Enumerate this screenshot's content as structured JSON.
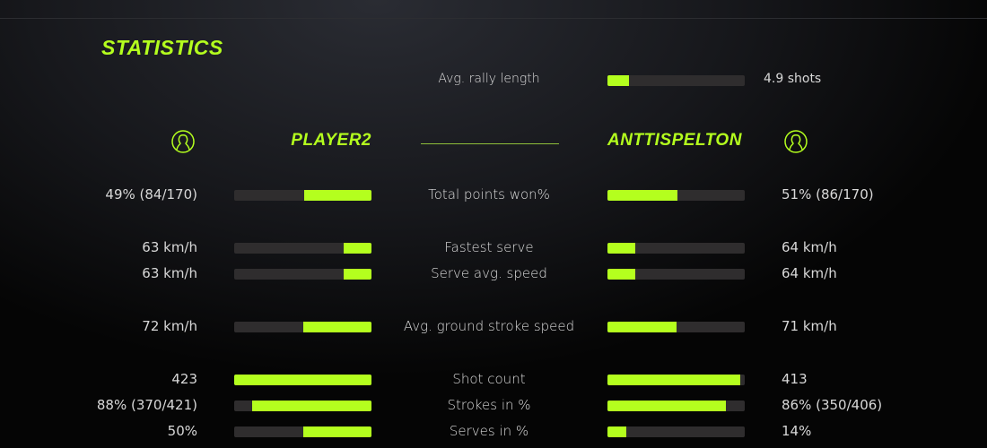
{
  "title": "STATISTICS",
  "accent": "#b4ff1e",
  "rally": {
    "label": "Avg. rally length",
    "value": "4.9 shots",
    "fill": 0.16
  },
  "players": {
    "left": {
      "name": "PLAYER2",
      "icon": "user-circle-icon"
    },
    "right": {
      "name": "ANTTISPELTON",
      "icon": "user-circle-icon"
    }
  },
  "rows": [
    {
      "label": "Total points won%",
      "left": "49% (84/170)",
      "right": "51% (86/170)",
      "left_fill": 0.49,
      "right_fill": 0.51
    },
    {
      "label": "Fastest serve",
      "left": "63 km/h",
      "right": "64 km/h",
      "left_fill": 0.2,
      "right_fill": 0.2
    },
    {
      "label": "Serve avg. speed",
      "left": "63 km/h",
      "right": "64 km/h",
      "left_fill": 0.2,
      "right_fill": 0.2
    },
    {
      "label": "Avg. ground stroke speed",
      "left": "72 km/h",
      "right": "71 km/h",
      "left_fill": 0.5,
      "right_fill": 0.5
    },
    {
      "label": "Shot count",
      "left": "423",
      "right": "413",
      "left_fill": 1.0,
      "right_fill": 0.97
    },
    {
      "label": "Strokes in %",
      "left": "88% (370/421)",
      "right": "86% (350/406)",
      "left_fill": 0.87,
      "right_fill": 0.86
    },
    {
      "label": "Serves in %",
      "left": "50%",
      "right": "14%",
      "left_fill": 0.5,
      "right_fill": 0.14
    }
  ]
}
